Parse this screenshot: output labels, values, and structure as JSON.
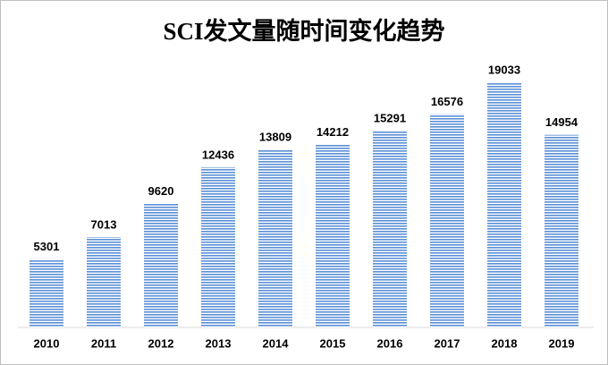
{
  "chart_data": {
    "type": "bar",
    "title": "SCI发文量随时间变化趋势",
    "categories": [
      "2010",
      "2011",
      "2012",
      "2013",
      "2014",
      "2015",
      "2016",
      "2017",
      "2018",
      "2019"
    ],
    "values": [
      5301,
      7013,
      9620,
      12436,
      13809,
      14212,
      15291,
      16576,
      19033,
      14954
    ],
    "color": "#5b8fd6"
  }
}
